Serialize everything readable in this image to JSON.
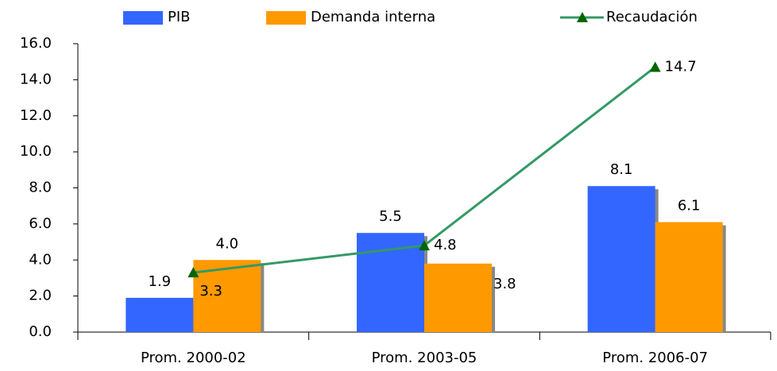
{
  "chart_data": {
    "type": "bar",
    "categories": [
      "Prom. 2000-02",
      "Prom. 2003-05",
      "Prom. 2006-07"
    ],
    "series": [
      {
        "name": "PIB",
        "color": "#3366ff",
        "values": [
          1.9,
          5.5,
          8.1
        ],
        "value_labels": [
          "1.9",
          "5.5",
          "8.1"
        ]
      },
      {
        "name": "Demanda interna",
        "color": "#ff9900",
        "values": [
          4.0,
          3.8,
          6.1
        ],
        "value_labels": [
          "4.0",
          "3.8",
          "6.1"
        ]
      },
      {
        "name": "Recaudación",
        "type": "line",
        "color": "#339966",
        "marker_color": "#006600",
        "values": [
          3.3,
          4.8,
          14.7
        ],
        "value_labels": [
          "3.3",
          "4.8",
          "14.7"
        ]
      }
    ],
    "ylim": [
      0,
      16
    ],
    "yticks": [
      {
        "value": 0,
        "label": "0.0"
      },
      {
        "value": 2,
        "label": "2.0"
      },
      {
        "value": 4,
        "label": "4.0"
      },
      {
        "value": 6,
        "label": "6.0"
      },
      {
        "value": 8,
        "label": "8.0"
      },
      {
        "value": 10,
        "label": "10.0"
      },
      {
        "value": 12,
        "label": "12.0"
      },
      {
        "value": 14,
        "label": "14.0"
      },
      {
        "value": 16,
        "label": "16.0"
      }
    ],
    "legend": "top"
  }
}
